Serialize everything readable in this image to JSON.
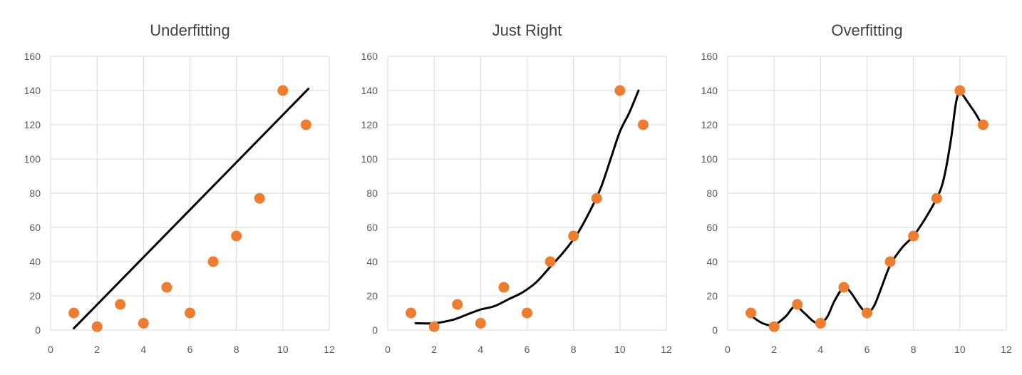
{
  "chart_data": [
    {
      "type": "scatter",
      "title": "Underfitting",
      "xlim": [
        0,
        12
      ],
      "ylim": [
        0,
        160
      ],
      "x_ticks": [
        "0",
        "2",
        "4",
        "6",
        "8",
        "10",
        "12"
      ],
      "y_ticks": [
        "0",
        "20",
        "40",
        "60",
        "80",
        "100",
        "120",
        "140",
        "160"
      ],
      "grid": true,
      "legend": "none",
      "points": {
        "x": [
          1,
          2,
          3,
          4,
          5,
          6,
          7,
          8,
          9,
          10,
          11
        ],
        "y": [
          10,
          2,
          15,
          4,
          25,
          10,
          40,
          55,
          77,
          140,
          120
        ]
      },
      "fit_line": {
        "x": [
          1,
          11.1
        ],
        "y": [
          1,
          141
        ]
      },
      "point_color": "#ED7D31",
      "line_color": "#000000"
    },
    {
      "type": "scatter",
      "title": "Just Right",
      "xlim": [
        0,
        12
      ],
      "ylim": [
        0,
        160
      ],
      "x_ticks": [
        "0",
        "2",
        "4",
        "6",
        "8",
        "10",
        "12"
      ],
      "y_ticks": [
        "0",
        "20",
        "40",
        "60",
        "80",
        "100",
        "120",
        "140",
        "160"
      ],
      "grid": true,
      "legend": "none",
      "points": {
        "x": [
          1,
          2,
          3,
          4,
          5,
          6,
          7,
          8,
          9,
          10,
          11
        ],
        "y": [
          10,
          2,
          15,
          4,
          25,
          10,
          40,
          55,
          77,
          140,
          120
        ]
      },
      "fit_line": {
        "x": [
          1.2,
          2,
          2.8,
          3.4,
          4,
          4.6,
          5.2,
          5.8,
          6.4,
          7,
          7.6,
          8.2,
          8.8,
          9.2,
          9.6,
          10,
          10.4,
          10.8
        ],
        "y": [
          4,
          4,
          6,
          9,
          12,
          14,
          18,
          22,
          28,
          37,
          46,
          57,
          72,
          84,
          100,
          116,
          127,
          140
        ]
      },
      "point_color": "#ED7D31",
      "line_color": "#000000"
    },
    {
      "type": "scatter",
      "title": "Overfitting",
      "xlim": [
        0,
        12
      ],
      "ylim": [
        0,
        160
      ],
      "x_ticks": [
        "0",
        "2",
        "4",
        "6",
        "8",
        "10",
        "12"
      ],
      "y_ticks": [
        "0",
        "20",
        "40",
        "60",
        "80",
        "100",
        "120",
        "140",
        "160"
      ],
      "grid": true,
      "legend": "none",
      "points": {
        "x": [
          1,
          2,
          3,
          4,
          5,
          6,
          7,
          8,
          9,
          10,
          11
        ],
        "y": [
          10,
          2,
          15,
          4,
          25,
          10,
          40,
          55,
          77,
          140,
          120
        ]
      },
      "fit_line": {
        "x": [
          1.05,
          1.5,
          2,
          2.5,
          2.9,
          3.3,
          3.7,
          4,
          4.3,
          4.6,
          5,
          5.3,
          5.7,
          6,
          6.3,
          6.6,
          7,
          7.5,
          8,
          8.5,
          9,
          9.3,
          9.6,
          9.8,
          9.9,
          10,
          10.1,
          10.4,
          10.7,
          10.95
        ],
        "y": [
          8,
          4,
          3,
          8,
          14,
          10,
          5,
          4,
          8,
          17,
          25,
          22,
          14,
          10,
          14,
          24,
          38,
          48,
          55,
          65,
          77,
          88,
          110,
          130,
          137,
          140,
          138,
          132,
          126,
          120
        ]
      },
      "point_color": "#ED7D31",
      "line_color": "#000000"
    }
  ]
}
